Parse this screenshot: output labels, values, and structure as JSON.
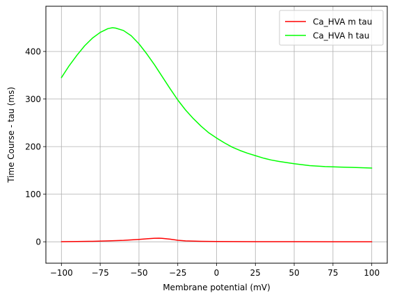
{
  "chart_data": {
    "type": "line",
    "title": "",
    "xlabel": "Membrane potential (mV)",
    "ylabel": "Time Course - tau (ms)",
    "xlim": [
      -110,
      110
    ],
    "ylim": [
      -45,
      495
    ],
    "xticks": [
      -100,
      -75,
      -50,
      -25,
      0,
      25,
      50,
      75,
      100
    ],
    "xtick_labels": [
      "−100",
      "−75",
      "−50",
      "−25",
      "0",
      "25",
      "50",
      "75",
      "100"
    ],
    "yticks": [
      0,
      100,
      200,
      300,
      400
    ],
    "ytick_labels": [
      "0",
      "100",
      "200",
      "300",
      "400"
    ],
    "grid": true,
    "legend_position": "top-right",
    "series": [
      {
        "name": "Ca_HVA m tau",
        "color": "#ff0000",
        "x": [
          -100,
          -90,
          -80,
          -70,
          -60,
          -50,
          -45,
          -40,
          -37,
          -35,
          -30,
          -25,
          -20,
          -10,
          0,
          25,
          50,
          75,
          100
        ],
        "y": [
          0.3,
          0.6,
          1.0,
          1.8,
          3.0,
          5.0,
          6.2,
          7.3,
          7.6,
          7.2,
          5.5,
          3.2,
          1.8,
          0.9,
          0.6,
          0.3,
          0.2,
          0.1,
          0.1
        ]
      },
      {
        "name": "Ca_HVA h tau",
        "color": "#00ff00",
        "x": [
          -100,
          -95,
          -90,
          -85,
          -80,
          -75,
          -70,
          -67,
          -65,
          -60,
          -55,
          -50,
          -45,
          -40,
          -35,
          -30,
          -25,
          -20,
          -15,
          -10,
          -5,
          0,
          5,
          10,
          15,
          20,
          25,
          30,
          35,
          40,
          50,
          60,
          70,
          80,
          90,
          100
        ],
        "y": [
          345,
          370,
          392,
          412,
          428,
          440,
          448,
          450,
          449,
          444,
          433,
          416,
          395,
          372,
          347,
          322,
          298,
          277,
          259,
          243,
          229,
          218,
          208,
          199,
          192,
          186,
          181,
          176,
          172,
          169,
          164,
          160,
          158,
          157,
          156,
          155
        ]
      }
    ]
  }
}
